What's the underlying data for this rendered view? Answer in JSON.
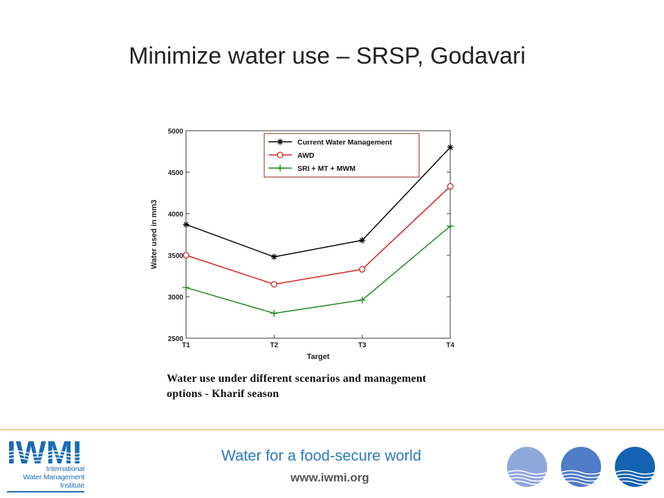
{
  "slide": {
    "title": "Minimize water use – SRSP, Godavari",
    "caption_line1": "Water use under different scenarios and management",
    "caption_line2": "options - Kharif season"
  },
  "footer": {
    "tagline": "Water for a food-secure world",
    "url": "www.iwmi.org",
    "logo_text": "IWMI",
    "logo_line1": "International",
    "logo_line2": "Water Management",
    "logo_line3": "Institute",
    "brand_color": "#1c6cb4",
    "circle_colors": [
      "#8fa8dc",
      "#4f7cc9",
      "#1463b3"
    ]
  },
  "chart_data": {
    "type": "line",
    "categories": [
      "T1",
      "T2",
      "T3",
      "T4"
    ],
    "xlabel": "Target",
    "ylabel": "Water used in mm3",
    "ylim": [
      2500,
      5000
    ],
    "yticks": [
      2500,
      3000,
      3500,
      4000,
      4500,
      5000
    ],
    "legend_position": "top-right",
    "grid": false,
    "series": [
      {
        "name": "Current Water Management",
        "color": "#000000",
        "marker": "star",
        "values": [
          3870,
          3480,
          3680,
          4800
        ]
      },
      {
        "name": "AWD",
        "color": "#d42020",
        "marker": "circle",
        "values": [
          3500,
          3150,
          3330,
          4330
        ]
      },
      {
        "name": "SRI + MT + MWM",
        "color": "#1a8a1a",
        "marker": "plus",
        "values": [
          3110,
          2800,
          2960,
          3850
        ]
      }
    ]
  }
}
